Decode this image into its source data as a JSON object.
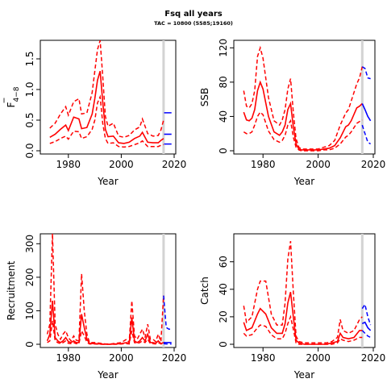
{
  "title": "Fsq all years",
  "subtitle": "TAC = 10800 (5585;19160)",
  "colors": {
    "history": "#ff0000",
    "forecast": "#0000ff",
    "marker": "#d3d3d3"
  },
  "chart_data": [
    {
      "id": "F",
      "type": "line",
      "ylabel_main": "F",
      "ylabel_sub": "4−8",
      "xlabel": "Year",
      "xlim": [
        1970,
        2020
      ],
      "ylim": [
        0,
        1.75
      ],
      "xticks": [
        "1980",
        "2000",
        "2020"
      ],
      "yticks": [
        "0.0",
        "0.5",
        "1.0",
        "1.5"
      ],
      "marker_year": 2016,
      "history": {
        "x": [
          1973,
          1975,
          1977,
          1979,
          1980,
          1982,
          1984,
          1985,
          1987,
          1989,
          1990,
          1991,
          1992,
          1993,
          1994,
          1995,
          1997,
          1999,
          2001,
          2003,
          2005,
          2007,
          2008,
          2010,
          2012,
          2014,
          2015,
          2016
        ],
        "median": [
          0.22,
          0.27,
          0.35,
          0.42,
          0.33,
          0.55,
          0.52,
          0.36,
          0.38,
          0.6,
          0.85,
          1.15,
          1.3,
          0.8,
          0.35,
          0.23,
          0.24,
          0.13,
          0.12,
          0.14,
          0.2,
          0.24,
          0.3,
          0.14,
          0.13,
          0.13,
          0.17,
          0.2
        ],
        "upper": [
          0.37,
          0.45,
          0.6,
          0.72,
          0.58,
          0.8,
          0.85,
          0.6,
          0.62,
          0.95,
          1.3,
          1.65,
          1.8,
          1.22,
          0.56,
          0.4,
          0.45,
          0.24,
          0.22,
          0.25,
          0.34,
          0.39,
          0.52,
          0.28,
          0.24,
          0.25,
          0.34,
          0.5
        ],
        "lower": [
          0.12,
          0.15,
          0.2,
          0.24,
          0.19,
          0.32,
          0.31,
          0.2,
          0.23,
          0.35,
          0.5,
          0.78,
          0.88,
          0.45,
          0.2,
          0.12,
          0.13,
          0.07,
          0.06,
          0.07,
          0.1,
          0.13,
          0.16,
          0.07,
          0.07,
          0.07,
          0.09,
          0.1
        ]
      },
      "forecast": {
        "x1": 2016.2,
        "x2": 2019,
        "median": 0.27,
        "upper": 0.62,
        "lower": 0.11
      }
    },
    {
      "id": "SSB",
      "type": "line",
      "ylabel_main": "SSB",
      "ylabel_sub": "",
      "xlabel": "Year",
      "xlim": [
        1970,
        2020
      ],
      "ylim": [
        0,
        125
      ],
      "xticks": [
        "1980",
        "2000",
        "2020"
      ],
      "yticks": [
        "0",
        "40",
        "80",
        "120"
      ],
      "marker_year": 2016,
      "history": {
        "x": [
          1973,
          1974,
          1975,
          1976,
          1977,
          1978,
          1979,
          1980,
          1982,
          1984,
          1986,
          1987,
          1988,
          1989,
          1990,
          1991,
          1992,
          1993,
          1994,
          1996,
          1998,
          2000,
          2002,
          2004,
          2006,
          2008,
          2010,
          2011,
          2012,
          2014,
          2015,
          2016
        ],
        "median": [
          45,
          36,
          35,
          38,
          48,
          70,
          80,
          72,
          40,
          22,
          18,
          22,
          30,
          48,
          55,
          28,
          8,
          2,
          1,
          1,
          1,
          1,
          2,
          3,
          6,
          15,
          28,
          30,
          35,
          50,
          52,
          55
        ],
        "upper": [
          70,
          52,
          50,
          55,
          70,
          110,
          120,
          108,
          62,
          35,
          30,
          36,
          48,
          72,
          84,
          45,
          14,
          4,
          2,
          2,
          2,
          2,
          4,
          6,
          12,
          30,
          44,
          48,
          58,
          78,
          85,
          98
        ],
        "lower": [
          22,
          20,
          20,
          22,
          30,
          40,
          45,
          42,
          23,
          13,
          10,
          12,
          18,
          30,
          35,
          16,
          4,
          1,
          0,
          0,
          0,
          0,
          1,
          1,
          3,
          8,
          16,
          18,
          22,
          32,
          34,
          36
        ]
      },
      "forecast": {
        "x": [
          2016,
          2017,
          2018,
          2019
        ],
        "median": [
          55,
          48,
          40,
          35
        ],
        "upper": [
          98,
          96,
          85,
          84
        ],
        "lower": [
          30,
          20,
          10,
          8
        ]
      }
    },
    {
      "id": "Recruitment",
      "type": "line",
      "ylabel_main": "Recruitment",
      "ylabel_sub": "",
      "xlabel": "Year",
      "xlim": [
        1970,
        2020
      ],
      "ylim": [
        0,
        320
      ],
      "xticks": [
        "1980",
        "2000",
        "2020"
      ],
      "yticks": [
        "0",
        "100",
        "200",
        "300"
      ],
      "marker_year": 2016,
      "history": {
        "x": [
          1972,
          1973,
          1974,
          1975,
          1976,
          1977,
          1978,
          1979,
          1980,
          1981,
          1982,
          1983,
          1984,
          1985,
          1986,
          1987,
          1988,
          1990,
          1992,
          1994,
          1996,
          1998,
          2000,
          2002,
          2003,
          2004,
          2005,
          2006,
          2007,
          2008,
          2009,
          2010,
          2011,
          2012,
          2013,
          2014,
          2015,
          2016
        ],
        "median": [
          10,
          30,
          130,
          20,
          10,
          5,
          10,
          20,
          8,
          5,
          10,
          5,
          5,
          90,
          50,
          15,
          3,
          2,
          1,
          0,
          0,
          1,
          2,
          5,
          2,
          80,
          10,
          5,
          10,
          20,
          10,
          30,
          5,
          5,
          3,
          10,
          2,
          5
        ],
        "upper": [
          30,
          60,
          330,
          60,
          30,
          15,
          30,
          40,
          20,
          10,
          25,
          12,
          10,
          210,
          100,
          30,
          5,
          5,
          3,
          1,
          1,
          3,
          5,
          15,
          5,
          130,
          25,
          15,
          30,
          45,
          20,
          60,
          15,
          15,
          8,
          30,
          8,
          145
        ],
        "lower": [
          5,
          10,
          70,
          10,
          5,
          2,
          5,
          10,
          3,
          2,
          5,
          2,
          2,
          40,
          25,
          6,
          1,
          1,
          0,
          0,
          0,
          0,
          1,
          2,
          1,
          40,
          5,
          2,
          5,
          10,
          5,
          15,
          2,
          2,
          1,
          5,
          1,
          2
        ]
      },
      "forecast": {
        "x": [
          2016,
          2017,
          2018,
          2019
        ],
        "median": [
          5,
          5,
          5,
          5
        ],
        "upper": [
          145,
          50,
          45,
          45
        ],
        "lower": [
          2,
          1,
          1,
          1
        ]
      }
    },
    {
      "id": "Catch",
      "type": "line",
      "ylabel_main": "Catch",
      "ylabel_sub": "",
      "xlabel": "Year",
      "xlim": [
        1970,
        2020
      ],
      "ylim": [
        0,
        78
      ],
      "xticks": [
        "1980",
        "2000",
        "2020"
      ],
      "yticks": [
        "0",
        "20",
        "40",
        "60"
      ],
      "marker_year": 2016,
      "history": {
        "x": [
          1973,
          1974,
          1976,
          1978,
          1979,
          1981,
          1983,
          1985,
          1987,
          1988,
          1989,
          1990,
          1991,
          1992,
          1993,
          1995,
          1997,
          1999,
          2001,
          2003,
          2005,
          2007,
          2008,
          2009,
          2011,
          2013,
          2015,
          2016
        ],
        "median": [
          16,
          10,
          12,
          22,
          26,
          22,
          12,
          8,
          8,
          15,
          30,
          38,
          20,
          3,
          1,
          0,
          0,
          0,
          0,
          0,
          1,
          2,
          8,
          5,
          4,
          5,
          10,
          10
        ],
        "upper": [
          28,
          16,
          20,
          40,
          46,
          46,
          22,
          14,
          14,
          30,
          62,
          75,
          38,
          6,
          2,
          1,
          1,
          1,
          1,
          1,
          2,
          5,
          18,
          10,
          8,
          10,
          18,
          20
        ],
        "lower": [
          8,
          6,
          7,
          12,
          14,
          13,
          7,
          4,
          4,
          8,
          15,
          20,
          11,
          1,
          0,
          0,
          0,
          0,
          0,
          0,
          0,
          1,
          4,
          3,
          2,
          3,
          5,
          5
        ]
      },
      "forecast": {
        "x": [
          2016,
          2017,
          2018,
          2019
        ],
        "median": [
          15,
          16,
          12,
          10
        ],
        "upper": [
          26,
          29,
          20,
          14
        ],
        "lower": [
          10,
          8,
          6,
          5
        ]
      }
    }
  ]
}
